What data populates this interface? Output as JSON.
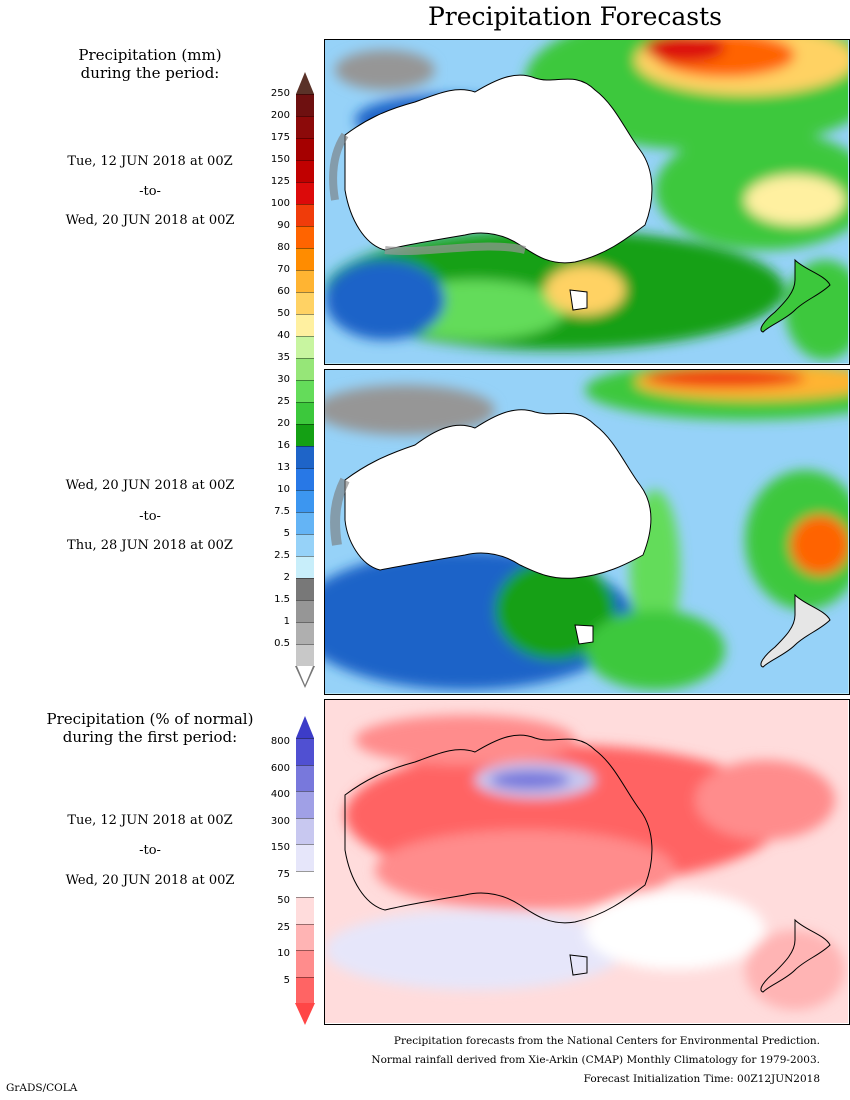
{
  "title": "Precipitation Forecasts",
  "panel1": {
    "heading_line1": "Precipitation (mm)",
    "heading_line2": "during the period:",
    "start": "Tue, 12 JUN 2018 at 00Z",
    "sep": "-to-",
    "end": "Wed, 20 JUN 2018 at 00Z"
  },
  "panel2": {
    "start": "Wed, 20 JUN 2018 at 00Z",
    "sep": "-to-",
    "end": "Thu, 28 JUN 2018 at 00Z"
  },
  "panel3": {
    "heading_line1": "Precipitation (% of normal)",
    "heading_line2": "during the first period:",
    "start": "Tue, 12 JUN 2018 at 00Z",
    "sep": "-to-",
    "end": "Wed, 20 JUN 2018 at 00Z"
  },
  "precip_scale": {
    "ticks": [
      "250",
      "200",
      "175",
      "150",
      "125",
      "100",
      "90",
      "80",
      "70",
      "60",
      "50",
      "40",
      "35",
      "30",
      "25",
      "20",
      "16",
      "13",
      "10",
      "7.5",
      "5",
      "2.5",
      "2",
      "1.5",
      "1",
      "0.5"
    ],
    "colors": [
      "#6e1010",
      "#8c0a0a",
      "#a50000",
      "#c00000",
      "#dc0a0a",
      "#f03c0a",
      "#ff6400",
      "#ff8c00",
      "#ffb432",
      "#ffd264",
      "#fff0a0",
      "#c8f5a0",
      "#96e678",
      "#64dc5a",
      "#3cc83c",
      "#14a014",
      "#1e64c8",
      "#2878e6",
      "#3c96f0",
      "#64b4f5",
      "#96d2f8",
      "#c8eefa",
      "#787878",
      "#969696",
      "#afafaf",
      "#c8c8c8"
    ],
    "top_cap": "#5a3228"
  },
  "percent_scale": {
    "ticks": [
      "800",
      "600",
      "400",
      "300",
      "150",
      "75",
      "50",
      "25",
      "10",
      "5"
    ],
    "colors": [
      "#5050d2",
      "#7878dc",
      "#a0a0e6",
      "#c8c8f0",
      "#e6e6fa",
      "#ffffff",
      "#ffdcdc",
      "#ffb4b4",
      "#ff8c8c",
      "#ff6464"
    ],
    "top_cap": "#3c3cc8",
    "bottom_cap": "#ff4646"
  },
  "footer": {
    "line1": "Precipitation forecasts from the National Centers for Environmental Prediction.",
    "line2": "Normal rainfall derived from Xie-Arkin (CMAP) Monthly Climatology for 1979-2003.",
    "line3": "Forecast Initialization Time: 00Z12JUN2018"
  },
  "credit": "GrADS/COLA"
}
